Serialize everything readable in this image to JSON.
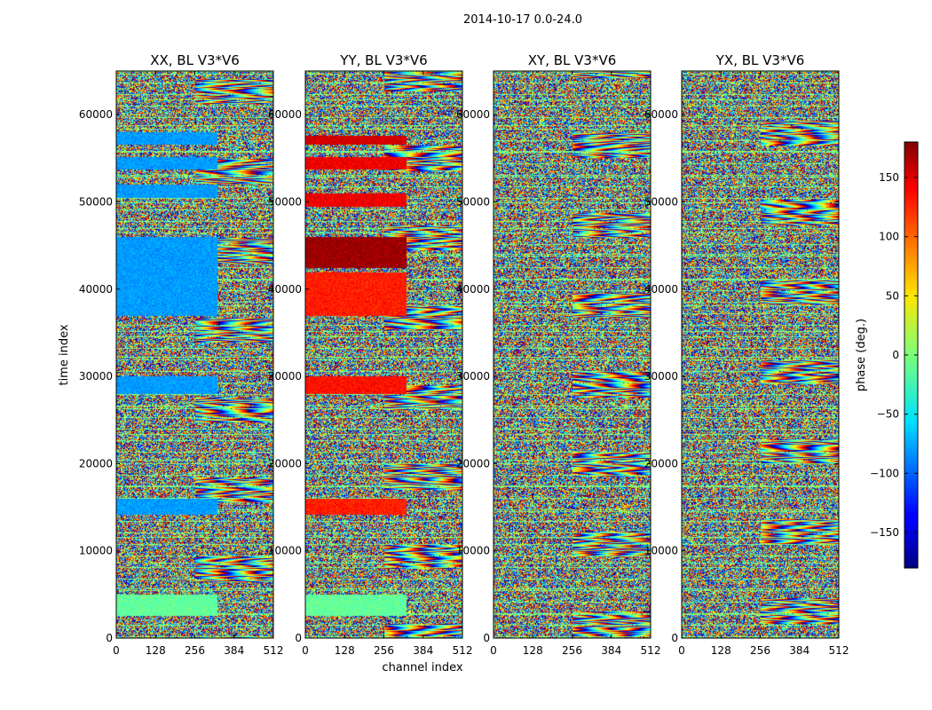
{
  "figure": {
    "suptitle": "2014-10-17 0.0-24.0",
    "xlabel": "channel index",
    "ylabel": "time index"
  },
  "chart_data": {
    "type": "heatmap",
    "title": "2014-10-17 0.0-24.0",
    "xlabel": "channel index",
    "ylabel": "time index",
    "xlim": [
      0,
      512
    ],
    "ylim": [
      0,
      65000
    ],
    "x_ticks": [
      0,
      128,
      256,
      384,
      512
    ],
    "x_tick_labels": [
      "0",
      "128",
      "256",
      "384",
      "512"
    ],
    "y_ticks": [
      0,
      10000,
      20000,
      30000,
      40000,
      50000,
      60000
    ],
    "y_tick_labels": [
      "0",
      "10000",
      "20000",
      "30000",
      "40000",
      "50000",
      "60000"
    ],
    "panels": [
      {
        "title": "XX, BL V3*V6",
        "flat_bands": [
          {
            "t0": 2600,
            "t1": 5000,
            "value": -10
          },
          {
            "t0": 14200,
            "t1": 16000,
            "value": -80
          },
          {
            "t0": 28000,
            "t1": 30100,
            "value": -80
          },
          {
            "t0": 37000,
            "t1": 46000,
            "value": -80
          },
          {
            "t0": 50500,
            "t1": 52000,
            "value": -80
          },
          {
            "t0": 53800,
            "t1": 55200,
            "value": -80
          },
          {
            "t0": 56600,
            "t1": 58000,
            "value": -80
          }
        ]
      },
      {
        "title": "YY, BL V3*V6",
        "flat_bands": [
          {
            "t0": 2600,
            "t1": 5000,
            "value": -10
          },
          {
            "t0": 14200,
            "t1": 16000,
            "value": 125
          },
          {
            "t0": 28000,
            "t1": 30100,
            "value": 130
          },
          {
            "t0": 37000,
            "t1": 42000,
            "value": 125
          },
          {
            "t0": 42500,
            "t1": 46000,
            "value": 170
          },
          {
            "t0": 49500,
            "t1": 51000,
            "value": 140
          },
          {
            "t0": 53800,
            "t1": 55200,
            "value": 140
          },
          {
            "t0": 56600,
            "t1": 57600,
            "value": 150
          }
        ]
      },
      {
        "title": "XY, BL V3*V6",
        "flat_bands": []
      },
      {
        "title": "YX, BL V3*V6",
        "flat_bands": []
      }
    ],
    "colorbar": {
      "label": "phase (deg.)",
      "vmin": -180,
      "vmax": 180,
      "ticks": [
        150,
        100,
        50,
        0,
        -50,
        -100,
        -150
      ],
      "tick_labels": [
        "150",
        "100",
        "50",
        "0",
        "−50",
        "−100",
        "−150"
      ],
      "colormap": "jet"
    }
  }
}
